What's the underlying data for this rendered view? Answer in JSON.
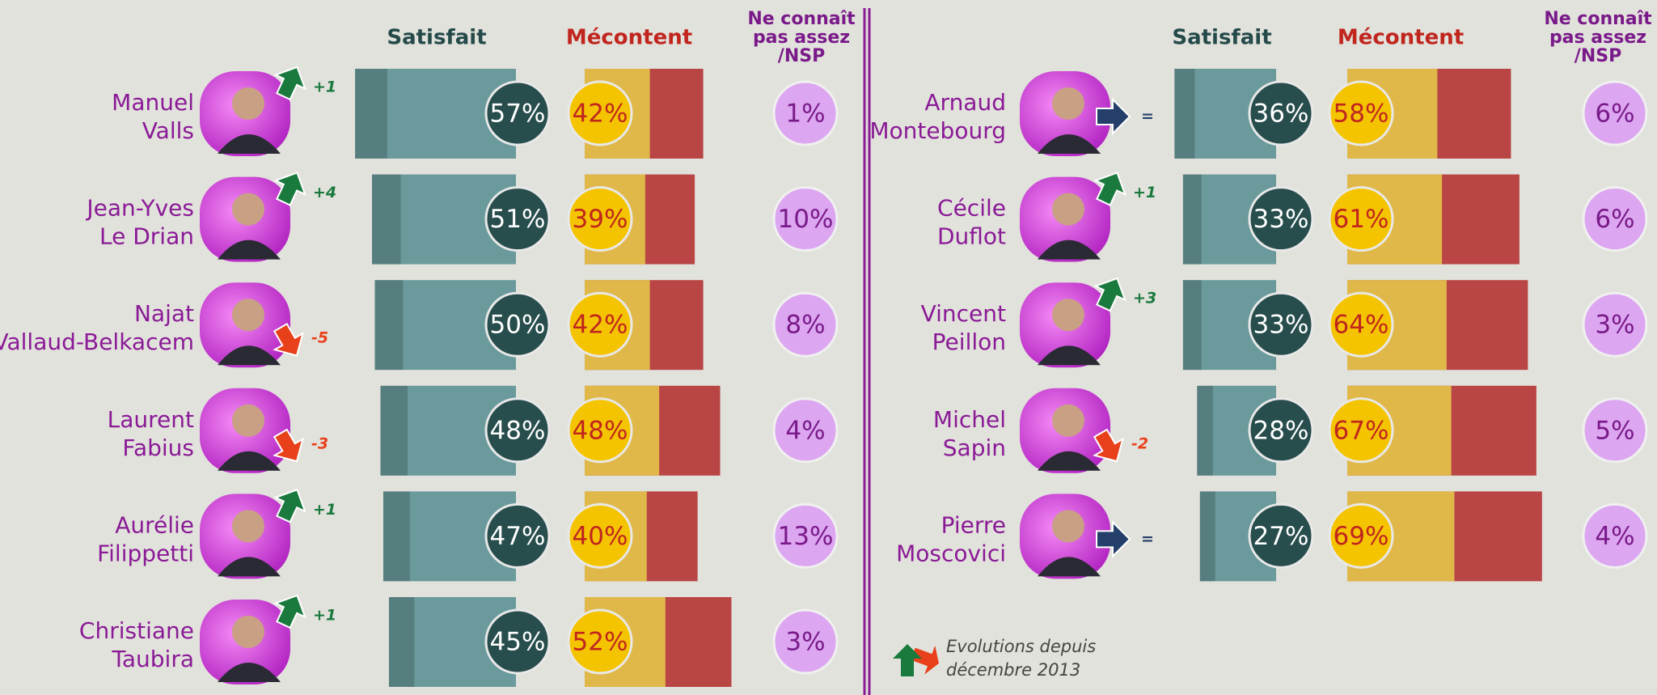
{
  "chart_data": {
    "type": "bar",
    "headers": [
      [
        "Satisfait"
      ],
      [
        "Mécontent"
      ],
      [
        "Ne connaît",
        "pas assez",
        "/NSP"
      ]
    ],
    "categories": [
      [
        "Manuel",
        "Valls"
      ],
      [
        "Jean-Yves",
        "Le Drian"
      ],
      [
        "Najat",
        "Vallaud-Belkacem"
      ],
      [
        "Laurent",
        "Fabius"
      ],
      [
        "Aurélie",
        "Filippetti"
      ],
      [
        "Christiane",
        "Taubira"
      ],
      [
        "Arnaud",
        "Montebourg"
      ],
      [
        "Cécile",
        "Duflot"
      ],
      [
        "Vincent",
        "Peillon"
      ],
      [
        "Michel",
        "Sapin"
      ],
      [
        "Pierre",
        "Moscovici"
      ]
    ],
    "evolution": [
      "+1",
      "+4",
      "-5",
      "-3",
      "+1",
      "+1",
      "=",
      "+1",
      "+3",
      "-2",
      "="
    ],
    "series": [
      {
        "color": "#6a9a9c",
        "values": [
          57,
          51,
          50,
          48,
          47,
          45,
          36,
          33,
          33,
          28,
          27
        ],
        "value_labels": [
          "57%",
          "51%",
          "50%",
          "48%",
          "47%",
          "45%",
          "36%",
          "33%",
          "33%",
          "28%",
          "27%"
        ]
      },
      {
        "color": "#b94545",
        "values": [
          42,
          39,
          42,
          48,
          40,
          52,
          58,
          61,
          64,
          67,
          69
        ],
        "value_labels": [
          "42%",
          "39%",
          "42%",
          "48%",
          "40%",
          "52%",
          "58%",
          "61%",
          "64%",
          "67%",
          "69%"
        ]
      },
      {
        "color": "#dca6f0",
        "values": [
          1,
          10,
          8,
          4,
          13,
          3,
          6,
          6,
          3,
          5,
          4
        ],
        "value_labels": [
          "1%",
          "10%",
          "8%",
          "4%",
          "13%",
          "3%",
          "6%",
          "6%",
          "3%",
          "5%",
          "4%"
        ]
      }
    ],
    "note": [
      "Evolutions depuis",
      "décembre 2013"
    ]
  }
}
